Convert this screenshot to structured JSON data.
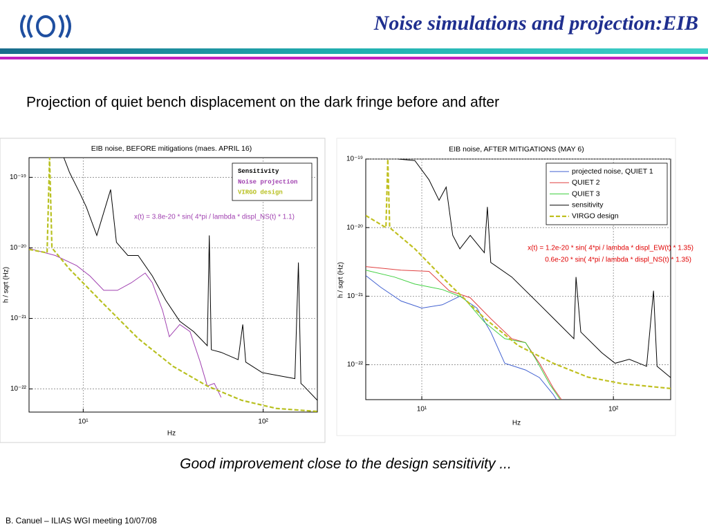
{
  "slide": {
    "title": "Noise simulations and projection:EIB",
    "subtitle": "Projection of quiet bench displacement on the dark fringe before and after",
    "caption": "Good improvement close to the design sensitivity ...",
    "footer": "B. Canuel – ILIAS WGI meeting 10/07/08"
  },
  "chart_data": [
    {
      "type": "line",
      "title": "EIB noise, BEFORE mitigations (maes. APRIL 16)",
      "xlabel": "Hz",
      "ylabel": "h / sqrt (Hz)",
      "xscale": "log",
      "yscale": "log",
      "grid": true,
      "legend": "upper right",
      "xlim": [
        5,
        200
      ],
      "ylim": [
        4.7e-23,
        1.9e-19
      ],
      "xticks": [
        {
          "value": 10,
          "label": "10¹"
        },
        {
          "value": 100,
          "label": "10²"
        }
      ],
      "yticks": [
        {
          "value": 1e-19,
          "label": "10⁻¹⁹"
        },
        {
          "value": 1e-20,
          "label": "10⁻²⁰"
        },
        {
          "value": 1e-21,
          "label": "10⁻²¹"
        },
        {
          "value": 1e-22,
          "label": "10⁻²²"
        }
      ],
      "annotations": [
        "x(t) = 3.8e-20 * sin( 4*pi / lambda * displ_NS(t) * 1.1)"
      ],
      "series": [
        {
          "name": "Sensitivity",
          "color": "#000000",
          "linestyle": "solid",
          "x": [
            7.8,
            8.4,
            9.6,
            10.4,
            11.9,
            14.2,
            15.3,
            17.7,
            20.2,
            24.2,
            28.8,
            34.4,
            41.1,
            48.9,
            50.2,
            51.5,
            58.4,
            72.6,
            77,
            80,
            98.9,
            150,
            157,
            162,
            168,
            200
          ],
          "values": [
            1.9e-19,
            1.17e-19,
            5.9e-20,
            3.8e-20,
            1.5e-20,
            6.7e-20,
            1.2e-20,
            7.8e-21,
            7.8e-21,
            4e-21,
            1.8e-21,
            9.1e-22,
            6.5e-22,
            4.1e-22,
            1.5e-20,
            3.6e-22,
            3.3e-22,
            2.6e-22,
            8.2e-22,
            2.4e-22,
            1.7e-22,
            1.4e-22,
            6.2e-21,
            1.2e-22,
            1.1e-22,
            6.9e-23
          ]
        },
        {
          "name": "Noise projection",
          "color": "#a040b0",
          "linestyle": "solid",
          "x": [
            5.0,
            7.0,
            9.2,
            10.9,
            13.0,
            15.5,
            18.5,
            22.1,
            24.2,
            27.6,
            30.1,
            34.4,
            39.2,
            44.7,
            48.9,
            53.5,
            58.4
          ],
          "values": [
            9.8e-21,
            7.8e-21,
            5.6e-21,
            4e-21,
            2.5e-21,
            2.5e-21,
            3.2e-21,
            4.4e-21,
            3.2e-21,
            1.3e-21,
            5.5e-22,
            8.2e-22,
            6.5e-22,
            2.4e-22,
            1.1e-22,
            1.2e-22,
            7.6e-23
          ]
        },
        {
          "name": "VIRGO design",
          "color": "#b8c020",
          "linestyle": "dashed",
          "x": [
            5.0,
            6.3,
            6.5,
            6.7,
            8.4,
            13.0,
            20.2,
            31.5,
            48.9,
            76,
            118,
            200
          ],
          "values": [
            9.5e-21,
            8.5e-21,
            1.9e-19,
            1e-20,
            5e-21,
            1.6e-21,
            5.2e-22,
            2.1e-22,
            1.1e-22,
            6.9e-23,
            5.3e-23,
            4.8e-23
          ]
        }
      ]
    },
    {
      "type": "line",
      "title": "EIB noise, AFTER MITIGATIONS (MAY 6)",
      "xlabel": "Hz",
      "ylabel": "h / sqrt (Hz)",
      "xscale": "log",
      "yscale": "log",
      "grid": true,
      "legend": "upper right",
      "xlim": [
        5.1,
        199
      ],
      "ylim": [
        3.1e-23,
        1e-19
      ],
      "xticks": [
        {
          "value": 10,
          "label": "10¹"
        },
        {
          "value": 100,
          "label": "10²"
        }
      ],
      "yticks": [
        {
          "value": 1e-19,
          "label": "10⁻¹⁹"
        },
        {
          "value": 1e-20,
          "label": "10⁻²⁰"
        },
        {
          "value": 1e-21,
          "label": "10⁻²¹"
        },
        {
          "value": 1e-22,
          "label": "10⁻²²"
        }
      ],
      "annotations": [
        "x(t) = 1.2e-20 * sin( 4*pi / lambda * displ_EW(t) * 1.35)",
        "0.6e-20 * sin( 4*pi / lambda * displ_NS(t) * 1.35)"
      ],
      "series": [
        {
          "name": "projected noise, QUIET 1",
          "color": "#4060d0",
          "linestyle": "solid",
          "x": [
            5.1,
            6.1,
            7.8,
            10,
            12.8,
            15.8,
            19.4,
            22.9,
            27.1,
            34.8,
            41.1,
            48.5,
            50.5
          ],
          "values": [
            2e-21,
            1.35e-21,
            8.5e-22,
            6.7e-22,
            7.5e-22,
            1e-21,
            6.7e-22,
            3e-22,
            1.05e-22,
            8.4e-23,
            6.5e-23,
            3.7e-23,
            3.1e-23
          ]
        },
        {
          "name": "QUIET 2",
          "color": "#e04040",
          "linestyle": "solid",
          "x": [
            5.1,
            7.8,
            10.9,
            13.9,
            17.9,
            22.9,
            29.5,
            34.8,
            41.1,
            48.5,
            53.6
          ],
          "values": [
            2.7e-21,
            2.4e-21,
            2.3e-21,
            1.2e-21,
            9.5e-22,
            4.7e-22,
            2.4e-22,
            2.1e-22,
            1.05e-22,
            4.6e-23,
            3.1e-23
          ]
        },
        {
          "name": "QUIET 3",
          "color": "#40d040",
          "linestyle": "solid",
          "x": [
            5.1,
            7.2,
            9.2,
            12.8,
            16.5,
            21.2,
            27.1,
            34.8,
            39.4,
            46.5,
            52.8
          ],
          "values": [
            2.4e-21,
            1.9e-21,
            1.5e-21,
            1.25e-21,
            9.5e-22,
            4.2e-22,
            2.4e-22,
            2.1e-22,
            1.2e-22,
            5.2e-23,
            3.1e-23
          ]
        },
        {
          "name": "sensitivity",
          "color": "#000000",
          "linestyle": "solid",
          "x": [
            7.5,
            9.2,
            10.9,
            12.3,
            13.4,
            14.5,
            15.8,
            17.9,
            21.2,
            22.0,
            22.9,
            29.5,
            41.1,
            48.5,
            62.2,
            63.8,
            67.6,
            86.9,
            102,
            121,
            149,
            162,
            169,
            199
          ],
          "values": [
            1e-19,
            9.5e-20,
            5e-20,
            2.5e-20,
            3.9e-20,
            7.7e-21,
            4.9e-21,
            7.7e-21,
            4.3e-21,
            2e-20,
            3.1e-21,
            1.9e-21,
            7.6e-22,
            4.8e-22,
            2.4e-22,
            1.9e-21,
            3e-22,
            1.5e-22,
            1.05e-22,
            1.2e-22,
            9.5e-23,
            1.2e-21,
            9.5e-23,
            6.5e-23
          ]
        },
        {
          "name": "VIRGO design",
          "color": "#c0c020",
          "linestyle": "dashed",
          "x": [
            5.1,
            6.5,
            6.65,
            6.8,
            9.2,
            13.9,
            21.2,
            31.9,
            48.5,
            73.6,
            111,
            199
          ],
          "values": [
            1.5e-20,
            1e-20,
            1e-19,
            1e-20,
            4.9e-21,
            1.5e-21,
            4.8e-22,
            1.9e-22,
            1.05e-22,
            6.6e-23,
            5.3e-23,
            4.5e-23
          ]
        }
      ]
    }
  ]
}
